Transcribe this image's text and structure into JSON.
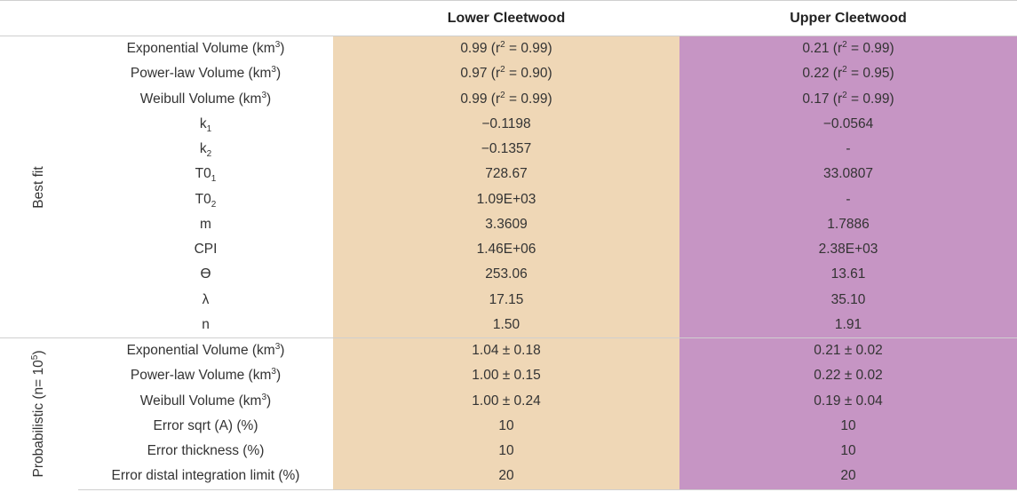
{
  "header": {
    "col_lower": "Lower Cleetwood",
    "col_upper": "Upper Cleetwood"
  },
  "sections": {
    "best_fit": "Best fit",
    "probabilistic_prefix": "Probabilistic (n= 10",
    "probabilistic_exp": "5",
    "probabilistic_suffix": ")"
  },
  "best_fit_rows": [
    {
      "label_base": "Exponential Volume (km",
      "label_sup": "3",
      "label_tail": ")",
      "lower_a": "0.99 (r",
      "lower_sup": "2",
      "lower_b": " = 0.99)",
      "upper_a": "0.21 (r",
      "upper_sup": "2",
      "upper_b": " = 0.99)"
    },
    {
      "label_base": "Power-law Volume (km",
      "label_sup": "3",
      "label_tail": ")",
      "lower_a": "0.97 (r",
      "lower_sup": "2",
      "lower_b": " = 0.90)",
      "upper_a": "0.22 (r",
      "upper_sup": "2",
      "upper_b": " = 0.95)"
    },
    {
      "label_base": "Weibull Volume (km",
      "label_sup": "3",
      "label_tail": ")",
      "lower_a": "0.99 (r",
      "lower_sup": "2",
      "lower_b": " = 0.99)",
      "upper_a": "0.17 (r",
      "upper_sup": "2",
      "upper_b": " = 0.99)"
    },
    {
      "label_base": "k",
      "label_sub": "1",
      "lower": "−0.1198",
      "upper": "−0.0564"
    },
    {
      "label_base": "k",
      "label_sub": "2",
      "lower": "−0.1357",
      "upper": "-"
    },
    {
      "label_base": "T0",
      "label_sub": "1",
      "lower": "728.67",
      "upper": "33.0807"
    },
    {
      "label_base": "T0",
      "label_sub": "2",
      "lower": "1.09E+03",
      "upper": "-"
    },
    {
      "label_base": "m",
      "lower": "3.3609",
      "upper": "1.7886"
    },
    {
      "label_base": "CPI",
      "lower": "1.46E+06",
      "upper": "2.38E+03"
    },
    {
      "label_base": "ϴ",
      "lower": "253.06",
      "upper": "13.61"
    },
    {
      "label_base": "λ",
      "lower": "17.15",
      "upper": "35.10"
    },
    {
      "label_base": "n",
      "lower": "1.50",
      "upper": "1.91"
    }
  ],
  "prob_rows": [
    {
      "label_base": "Exponential Volume (km",
      "label_sup": "3",
      "label_tail": ")",
      "lower": "1.04 ± 0.18",
      "upper": "0.21 ± 0.02"
    },
    {
      "label_base": "Power-law Volume (km",
      "label_sup": "3",
      "label_tail": ")",
      "lower": "1.00 ± 0.15",
      "upper": "0.22 ± 0.02"
    },
    {
      "label_base": "Weibull Volume (km",
      "label_sup": "3",
      "label_tail": ")",
      "lower": "1.00 ± 0.24",
      "upper": "0.19 ± 0.04"
    },
    {
      "label_base": "Error sqrt (A) (%)",
      "lower": "10",
      "upper": "10"
    },
    {
      "label_base": "Error thickness (%)",
      "lower": "10",
      "upper": "10"
    },
    {
      "label_base": "Error distal integration limit (%)",
      "lower": "20",
      "upper": "20"
    }
  ],
  "colors": {
    "lower_bg": "#efd7b6",
    "upper_bg": "#c695c4",
    "rule": "#cfcfcf"
  }
}
